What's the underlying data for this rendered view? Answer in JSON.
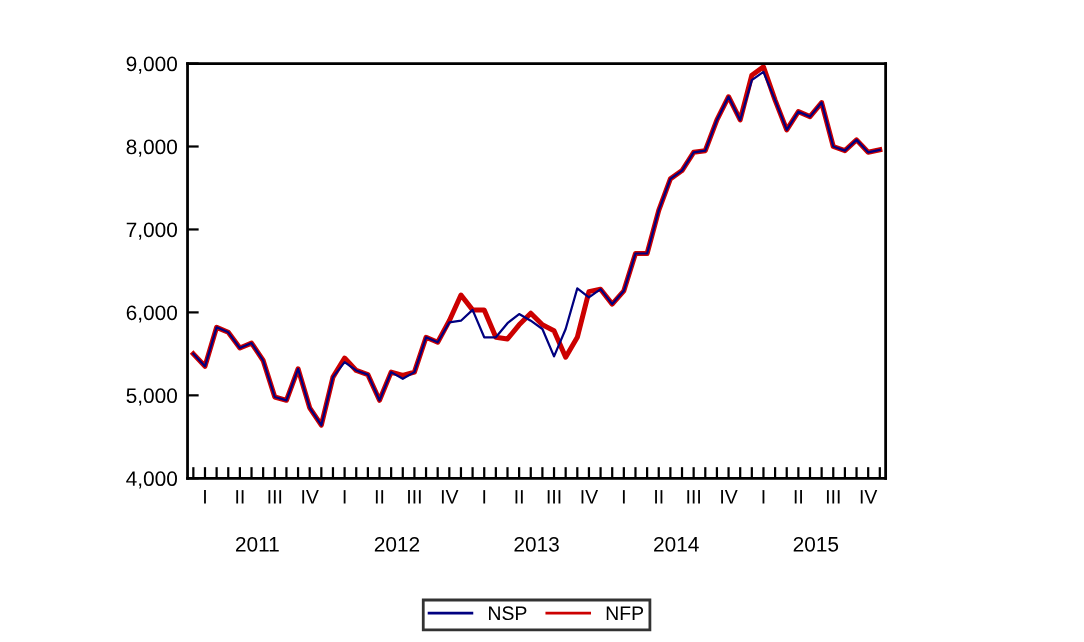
{
  "chart_data": {
    "type": "line",
    "categories": [
      null,
      "I",
      null,
      null,
      "II",
      null,
      null,
      "III",
      null,
      null,
      "IV",
      null,
      null,
      "I",
      null,
      null,
      "II",
      null,
      null,
      "III",
      null,
      null,
      "IV",
      null,
      null,
      "I",
      null,
      null,
      "II",
      null,
      null,
      "III",
      null,
      null,
      "IV",
      null,
      null,
      "I",
      null,
      null,
      "II",
      null,
      null,
      "III",
      null,
      null,
      "IV",
      null,
      null,
      "I",
      null,
      null,
      "II",
      null,
      null,
      "III",
      null,
      null,
      "IV",
      null
    ],
    "series": [
      {
        "name": "NSP",
        "color": "#000080",
        "values": [
          5500,
          5350,
          5820,
          5760,
          5570,
          5630,
          5420,
          4980,
          4940,
          5320,
          4850,
          4640,
          5220,
          5400,
          5300,
          5250,
          4940,
          5280,
          5200,
          5280,
          5700,
          5640,
          5880,
          5900,
          6030,
          5700,
          5700,
          5870,
          5980,
          5900,
          5800,
          5470,
          5800,
          6290,
          6180,
          6280,
          6100,
          6260,
          6710,
          6710,
          7230,
          7610,
          7710,
          7930,
          7950,
          8320,
          8600,
          8320,
          8800,
          8900,
          8560,
          8200,
          8420,
          8360,
          8530,
          8000,
          7950,
          8080,
          7930,
          7960
        ]
      },
      {
        "name": "NFP",
        "color": "#cc0000",
        "values": [
          5500,
          5350,
          5820,
          5760,
          5570,
          5630,
          5420,
          4980,
          4940,
          5320,
          4850,
          4640,
          5220,
          5450,
          5300,
          5250,
          4940,
          5280,
          5240,
          5280,
          5700,
          5640,
          5900,
          6210,
          6030,
          6030,
          5700,
          5680,
          5850,
          5990,
          5850,
          5780,
          5460,
          5700,
          6250,
          6280,
          6100,
          6260,
          6710,
          6710,
          7230,
          7610,
          7710,
          7930,
          7950,
          8320,
          8600,
          8320,
          8860,
          8960,
          8560,
          8200,
          8420,
          8360,
          8530,
          8000,
          7950,
          8080,
          7930,
          7960
        ]
      }
    ],
    "ylim": [
      4000,
      9000
    ],
    "yticks": [
      {
        "value": 4000,
        "label": "4,000"
      },
      {
        "value": 5000,
        "label": "5,000"
      },
      {
        "value": 6000,
        "label": "6,000"
      },
      {
        "value": 7000,
        "label": "7,000"
      },
      {
        "value": 8000,
        "label": "8,000"
      },
      {
        "value": 9000,
        "label": "9,000"
      }
    ],
    "annotations": [
      "2011",
      "2012",
      "2013",
      "2014",
      "2015"
    ],
    "grid": false,
    "legend": "bottom",
    "line_style": "solid",
    "marker": "none"
  }
}
